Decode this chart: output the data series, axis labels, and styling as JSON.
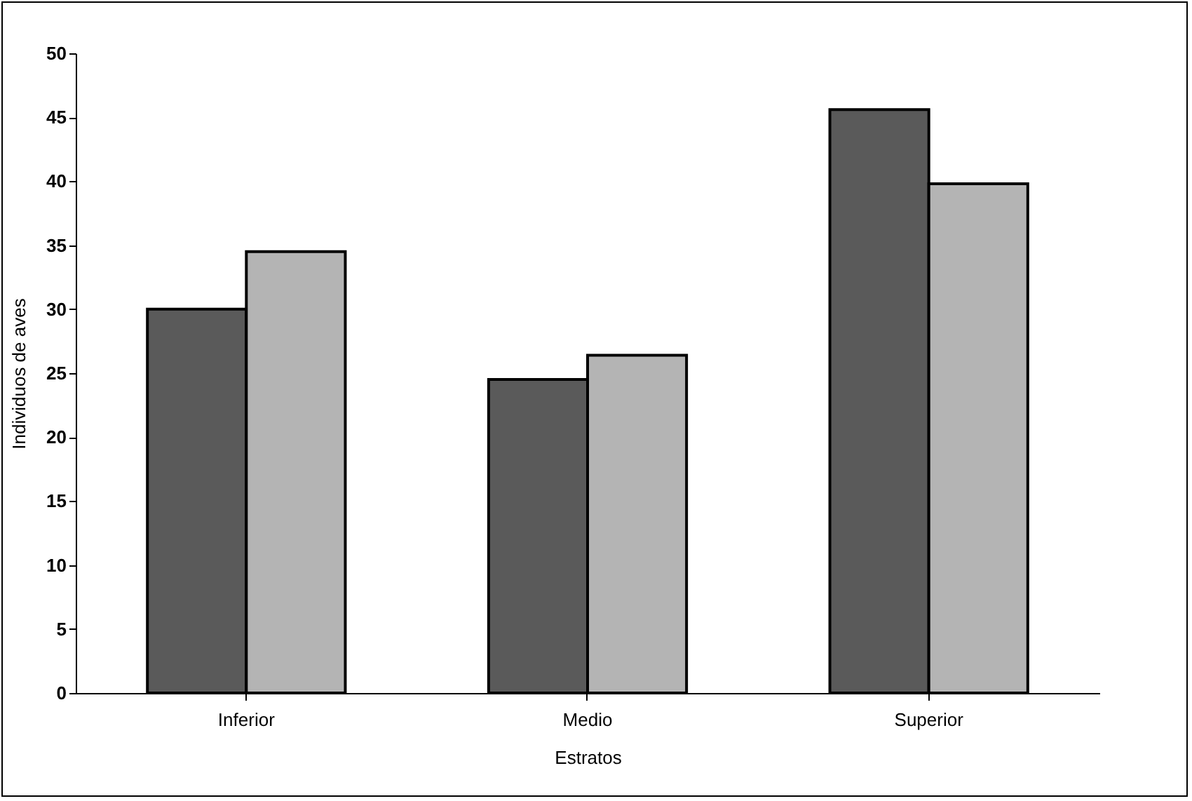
{
  "chart_data": {
    "type": "bar",
    "xlabel": "Estratos",
    "ylabel": "Individuos de aves",
    "categories": [
      "Inferior",
      "Medio",
      "Superior"
    ],
    "series": [
      {
        "color": "#5a5a5a",
        "values": [
          30.0,
          24.5,
          45.6
        ]
      },
      {
        "color": "#b4b4b4",
        "values": [
          34.5,
          26.4,
          39.8
        ]
      }
    ],
    "ylim": [
      0,
      50
    ],
    "yticks": [
      0,
      5,
      10,
      15,
      20,
      25,
      30,
      35,
      40,
      45,
      50
    ],
    "grid": false,
    "legend": false
  }
}
